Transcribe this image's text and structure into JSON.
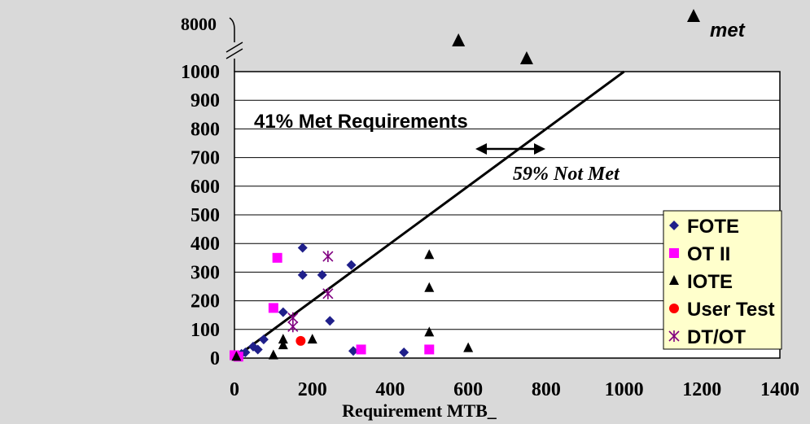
{
  "chart_data": {
    "type": "scatter",
    "title": "",
    "xlabel": "Requirement MTB_",
    "ylabel": "",
    "xlim": [
      0,
      1400
    ],
    "ylim": [
      0,
      1000
    ],
    "x_ticks": [
      "0",
      "200",
      "400",
      "600",
      "800",
      "1000",
      "1200",
      "1400"
    ],
    "x_tick_values": [
      0,
      200,
      400,
      600,
      800,
      1000,
      1200,
      1400
    ],
    "y_ticks": [
      "0",
      "100",
      "200",
      "300",
      "400",
      "500",
      "600",
      "700",
      "800",
      "900",
      "1000"
    ],
    "y_tick_values": [
      0,
      100,
      200,
      300,
      400,
      500,
      600,
      700,
      800,
      900,
      1000
    ],
    "y_break_label": "8000",
    "grid": "horizontal",
    "legend_position": "bottom-right",
    "reference_line": {
      "x": [
        0,
        1000
      ],
      "y": [
        0,
        1000
      ]
    },
    "annotations": {
      "met": "41% Met Requirements",
      "not_met": "59% Not Met",
      "met_corner": "met"
    },
    "series": [
      {
        "name": "FOTE",
        "marker": "diamond",
        "color": "#1f1f8a",
        "points": [
          [
            8,
            8
          ],
          [
            18,
            15
          ],
          [
            28,
            20
          ],
          [
            48,
            40
          ],
          [
            60,
            30
          ],
          [
            75,
            65
          ],
          [
            125,
            160
          ],
          [
            175,
            385
          ],
          [
            175,
            290
          ],
          [
            225,
            290
          ],
          [
            245,
            130
          ],
          [
            300,
            325
          ],
          [
            305,
            25
          ],
          [
            435,
            20
          ]
        ]
      },
      {
        "name": "OT II",
        "marker": "square",
        "color": "#ff00ff",
        "points": [
          [
            0,
            10
          ],
          [
            10,
            5
          ],
          [
            100,
            175
          ],
          [
            110,
            350
          ],
          [
            325,
            30
          ],
          [
            500,
            30
          ]
        ]
      },
      {
        "name": "IOTE",
        "marker": "triangle",
        "color": "#000000",
        "points": [
          [
            5,
            5
          ],
          [
            100,
            10
          ],
          [
            125,
            45
          ],
          [
            125,
            65
          ],
          [
            200,
            65
          ],
          [
            500,
            360
          ],
          [
            500,
            245
          ],
          [
            500,
            90
          ],
          [
            600,
            35
          ]
        ]
      },
      {
        "name": "User Test",
        "marker": "circle",
        "color": "#ff0000",
        "points": [
          [
            170,
            60
          ]
        ]
      },
      {
        "name": "DT/OT",
        "marker": "asterisk",
        "color": "#800080",
        "points": [
          [
            240,
            355
          ],
          [
            240,
            225
          ],
          [
            150,
            140
          ],
          [
            150,
            110
          ]
        ]
      }
    ],
    "off_scale_points": {
      "series": "IOTE",
      "points": [
        [
          575,
          "above break"
        ],
        [
          750,
          "above break"
        ],
        [
          1200,
          "above break"
        ]
      ]
    }
  }
}
